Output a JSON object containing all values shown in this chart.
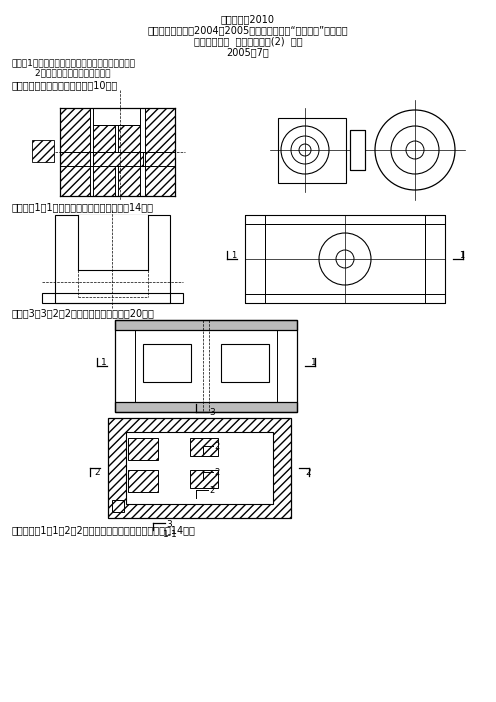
{
  "title_line1": "试卷代号：2010",
  "title_line2": "中央广播电视大学2004－2005学年度第二学期“开放专科”期末考试",
  "title_line3": "水利水电专业  水利工程制图(2)  试题",
  "title_line4": "2005年7月",
  "note1": "说明：1．用铅笔答题，要求图线清晰，字体工整。",
  "note2": "        2．第七、第八题分专业备题。",
  "q1": "一、补画剖视图中所漏的线。（10分）",
  "q2": "二、补画1－1剖视图。（材料：混凝土）（14分）",
  "q3": "三、做3－3、2－2剖视图。不指明材料（20分）",
  "q4": "四、作出的1－1、2－2断面图。（材料：钢筋混凝土）（14分）",
  "bg": "#ffffff",
  "lc": "#000000"
}
